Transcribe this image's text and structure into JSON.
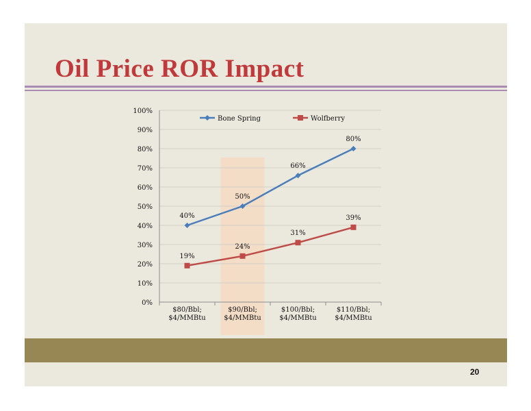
{
  "slide": {
    "title": "Oil Price ROR Impact",
    "page_number": "20"
  },
  "colors": {
    "title": "#c0393b",
    "accent_rule": "#a98bb4",
    "bottom_band": "#968754",
    "background": "#ebe8dd",
    "highlight": "#f5d9bf"
  },
  "chart_data": {
    "type": "line",
    "categories": [
      [
        "$80/Bbl;",
        "$4/MMBtu"
      ],
      [
        "$90/Bbl;",
        "$4/MMBtu"
      ],
      [
        "$100/Bbl;",
        "$4/MMBtu"
      ],
      [
        "$110/Bbl;",
        "$4/MMBtu"
      ]
    ],
    "series": [
      {
        "name": "Bone Spring",
        "values": [
          40,
          50,
          66,
          80
        ],
        "labels": [
          "40%",
          "50%",
          "66%",
          "80%"
        ],
        "color": "#4a7ebb",
        "marker": "diamond"
      },
      {
        "name": "Wolfberry",
        "values": [
          19,
          24,
          31,
          39
        ],
        "labels": [
          "19%",
          "24%",
          "31%",
          "39%"
        ],
        "color": "#be4b48",
        "marker": "square"
      }
    ],
    "ylim": [
      0,
      100
    ],
    "yticks": [
      0,
      10,
      20,
      30,
      40,
      50,
      60,
      70,
      80,
      90,
      100
    ],
    "ytick_labels": [
      "0%",
      "10%",
      "20%",
      "30%",
      "40%",
      "50%",
      "60%",
      "70%",
      "80%",
      "90%",
      "100%"
    ],
    "grid": true,
    "legend": "top",
    "highlighted_category": 1,
    "title": "",
    "xlabel": "",
    "ylabel": ""
  }
}
